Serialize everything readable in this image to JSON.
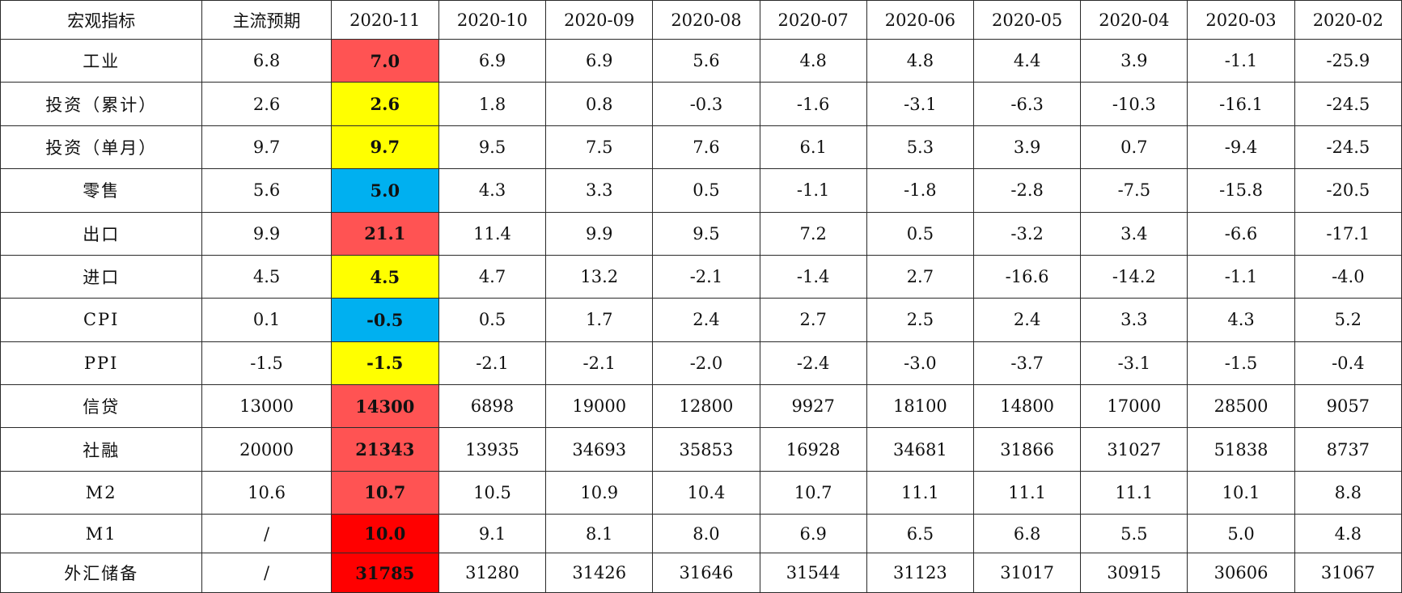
{
  "highlight_colors": {
    "above": "#ff5353",
    "strong": "#ff0000",
    "equal": "#ffff00",
    "below": "#00b0f0"
  },
  "columns": [
    "宏观指标",
    "主流预期",
    "2020-11",
    "2020-10",
    "2020-09",
    "2020-08",
    "2020-07",
    "2020-06",
    "2020-05",
    "2020-04",
    "2020-03",
    "2020-02"
  ],
  "rows": [
    {
      "indicator": "工业",
      "expected": "6.8",
      "current": "7.0",
      "highlight": "above",
      "history": [
        "6.9",
        "6.9",
        "5.6",
        "4.8",
        "4.8",
        "4.4",
        "3.9",
        "-1.1",
        "-25.9"
      ]
    },
    {
      "indicator": "投资（累计）",
      "expected": "2.6",
      "current": "2.6",
      "highlight": "equal",
      "history": [
        "1.8",
        "0.8",
        "-0.3",
        "-1.6",
        "-3.1",
        "-6.3",
        "-10.3",
        "-16.1",
        "-24.5"
      ]
    },
    {
      "indicator": "投资（单月）",
      "expected": "9.7",
      "current": "9.7",
      "highlight": "equal",
      "history": [
        "9.5",
        "7.5",
        "7.6",
        "6.1",
        "5.3",
        "3.9",
        "0.7",
        "-9.4",
        "-24.5"
      ]
    },
    {
      "indicator": "零售",
      "expected": "5.6",
      "current": "5.0",
      "highlight": "below",
      "history": [
        "4.3",
        "3.3",
        "0.5",
        "-1.1",
        "-1.8",
        "-2.8",
        "-7.5",
        "-15.8",
        "-20.5"
      ]
    },
    {
      "indicator": "出口",
      "expected": "9.9",
      "current": "21.1",
      "highlight": "above",
      "history": [
        "11.4",
        "9.9",
        "9.5",
        "7.2",
        "0.5",
        "-3.2",
        "3.4",
        "-6.6",
        "-17.1"
      ]
    },
    {
      "indicator": "进口",
      "expected": "4.5",
      "current": "4.5",
      "highlight": "equal",
      "history": [
        "4.7",
        "13.2",
        "-2.1",
        "-1.4",
        "2.7",
        "-16.6",
        "-14.2",
        "-1.1",
        "-4.0"
      ]
    },
    {
      "indicator": "CPI",
      "expected": "0.1",
      "current": "-0.5",
      "highlight": "below",
      "history": [
        "0.5",
        "1.7",
        "2.4",
        "2.7",
        "2.5",
        "2.4",
        "3.3",
        "4.3",
        "5.2"
      ]
    },
    {
      "indicator": "PPI",
      "expected": "-1.5",
      "current": "-1.5",
      "highlight": "equal",
      "history": [
        "-2.1",
        "-2.1",
        "-2.0",
        "-2.4",
        "-3.0",
        "-3.7",
        "-3.1",
        "-1.5",
        "-0.4"
      ]
    },
    {
      "indicator": "信贷",
      "expected": "13000",
      "current": "14300",
      "highlight": "above",
      "history": [
        "6898",
        "19000",
        "12800",
        "9927",
        "18100",
        "14800",
        "17000",
        "28500",
        "9057"
      ]
    },
    {
      "indicator": "社融",
      "expected": "20000",
      "current": "21343",
      "highlight": "above",
      "history": [
        "13935",
        "34693",
        "35853",
        "16928",
        "34681",
        "31866",
        "31027",
        "51838",
        "8737"
      ]
    },
    {
      "indicator": "M2",
      "expected": "10.6",
      "current": "10.7",
      "highlight": "above",
      "history": [
        "10.5",
        "10.9",
        "10.4",
        "10.7",
        "11.1",
        "11.1",
        "11.1",
        "10.1",
        "8.8"
      ]
    },
    {
      "indicator": "M1",
      "expected": "/",
      "current": "10.0",
      "highlight": "strong",
      "history": [
        "9.1",
        "8.1",
        "8.0",
        "6.9",
        "6.5",
        "6.8",
        "5.5",
        "5.0",
        "4.8"
      ]
    },
    {
      "indicator": "外汇储备",
      "expected": "/",
      "current": "31785",
      "highlight": "strong",
      "history": [
        "31280",
        "31426",
        "31646",
        "31544",
        "31123",
        "31017",
        "30915",
        "30606",
        "31067"
      ]
    }
  ]
}
